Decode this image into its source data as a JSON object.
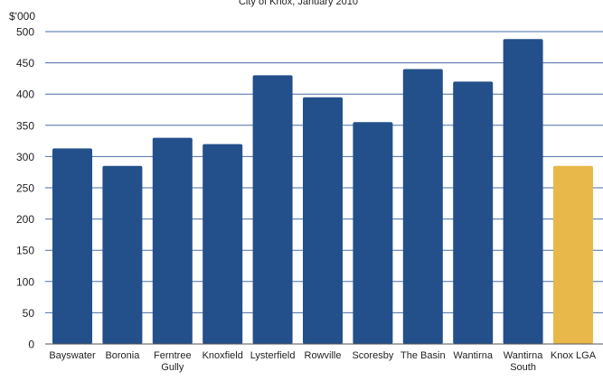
{
  "chart_data": {
    "type": "bar",
    "title": "City of Knox, January 2010",
    "ylabel": "$'000",
    "xlabel": "",
    "ylim": [
      0,
      500
    ],
    "y_ticks": [
      0,
      50,
      100,
      150,
      200,
      250,
      300,
      350,
      400,
      450,
      500
    ],
    "grid": true,
    "categories": [
      "Bayswater",
      "Boronia",
      "Ferntree Gully",
      "Knoxfield",
      "Lysterfield",
      "Rowville",
      "Scoresby",
      "The Basin",
      "Wantirna",
      "Wantirna South",
      "Knox LGA"
    ],
    "values": [
      313,
      285,
      330,
      320,
      430,
      395,
      355,
      440,
      420,
      488,
      285
    ],
    "colors": {
      "suburb_bar": "#23508a",
      "lga_bar": "#e9b84a",
      "grid": "#4a6ea4",
      "axis": "#555555",
      "text": "#222222"
    }
  }
}
